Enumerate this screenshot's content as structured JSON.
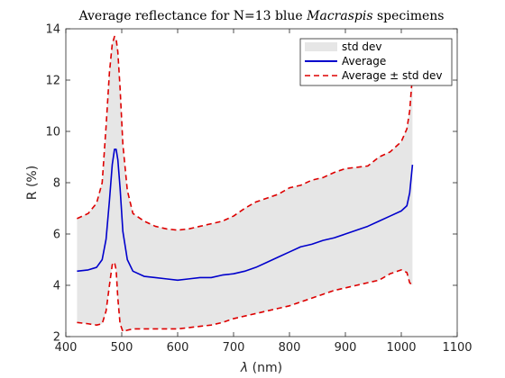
{
  "chart_data": {
    "type": "area",
    "title": {
      "prefix": "Average reflectance for N=13 blue ",
      "italic": "Macraspis",
      "suffix": " specimens"
    },
    "xlabel": {
      "italic": "λ",
      "text": " (nm)"
    },
    "ylabel": "R (%)",
    "xlim": [
      400,
      1100
    ],
    "ylim": [
      2,
      14
    ],
    "xticks": [
      400,
      500,
      600,
      700,
      800,
      900,
      1000,
      1100
    ],
    "yticks": [
      2,
      4,
      6,
      8,
      10,
      12,
      14
    ],
    "legend": {
      "position": "top-right",
      "entries": [
        "std dev",
        "Average",
        "Average ± std dev"
      ]
    },
    "colors": {
      "band": "#e6e6e6",
      "average": "#0000cc",
      "bounds": "#dd0000"
    },
    "x": [
      420,
      440,
      455,
      465,
      472,
      478,
      483,
      487,
      490,
      493,
      497,
      502,
      510,
      520,
      540,
      560,
      580,
      600,
      620,
      640,
      660,
      680,
      700,
      720,
      740,
      760,
      780,
      800,
      820,
      840,
      860,
      880,
      900,
      920,
      940,
      960,
      980,
      1000,
      1010,
      1015,
      1020
    ],
    "series": [
      {
        "name": "Average",
        "values": [
          4.55,
          4.6,
          4.7,
          5.0,
          5.8,
          7.3,
          8.7,
          9.3,
          9.3,
          8.9,
          7.8,
          6.1,
          5.0,
          4.55,
          4.35,
          4.3,
          4.25,
          4.2,
          4.25,
          4.3,
          4.3,
          4.4,
          4.45,
          4.55,
          4.7,
          4.9,
          5.1,
          5.3,
          5.5,
          5.6,
          5.75,
          5.85,
          6.0,
          6.15,
          6.3,
          6.5,
          6.7,
          6.9,
          7.1,
          7.6,
          8.7
        ]
      },
      {
        "name": "Average + std dev",
        "values": [
          6.6,
          6.8,
          7.2,
          8.0,
          10.2,
          12.3,
          13.4,
          13.7,
          13.6,
          13.1,
          11.7,
          9.5,
          7.7,
          6.8,
          6.5,
          6.3,
          6.2,
          6.15,
          6.2,
          6.3,
          6.4,
          6.5,
          6.7,
          7.0,
          7.25,
          7.4,
          7.55,
          7.8,
          7.9,
          8.1,
          8.2,
          8.4,
          8.55,
          8.6,
          8.65,
          9.0,
          9.2,
          9.6,
          10.1,
          10.8,
          12.2
        ]
      },
      {
        "name": "Average − std dev",
        "values": [
          2.55,
          2.5,
          2.45,
          2.5,
          3.0,
          4.0,
          4.8,
          4.9,
          4.6,
          3.5,
          2.5,
          2.2,
          2.25,
          2.3,
          2.3,
          2.3,
          2.3,
          2.3,
          2.35,
          2.4,
          2.45,
          2.55,
          2.7,
          2.8,
          2.9,
          3.0,
          3.1,
          3.2,
          3.35,
          3.5,
          3.65,
          3.8,
          3.9,
          4.0,
          4.1,
          4.2,
          4.45,
          4.6,
          4.5,
          4.1,
          4.0
        ]
      }
    ]
  }
}
